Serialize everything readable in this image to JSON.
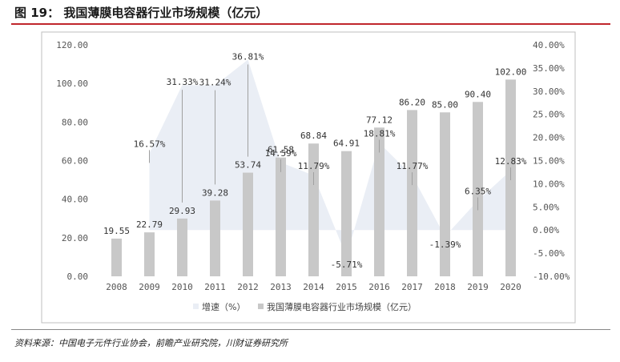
{
  "figure": {
    "title": "图 19：  我国薄膜电容器行业市场规模（亿元）",
    "source": "资料来源：中国电子元件行业协会，前瞻产业研究院，川财证券研究所"
  },
  "colors": {
    "bar": "#c8c8c8",
    "area": "#eaeef5",
    "leader": "#a0a0a0",
    "title_rule": "#c0262c",
    "chart_border": "#bfbfbf"
  },
  "chart_data": {
    "type": "bar",
    "categories": [
      "2008",
      "2009",
      "2010",
      "2011",
      "2012",
      "2013",
      "2014",
      "2015",
      "2016",
      "2017",
      "2018",
      "2019",
      "2020"
    ],
    "series": [
      {
        "name": "我国薄膜电容器行业市场规模（亿元）",
        "type": "bar",
        "axis": "left",
        "values": [
          19.55,
          22.79,
          29.93,
          39.28,
          53.74,
          61.58,
          68.84,
          64.91,
          77.12,
          86.2,
          85.0,
          90.4,
          102.0
        ],
        "labels": [
          "19.55",
          "22.79",
          "29.93",
          "39.28",
          "53.74",
          "61.58",
          "68.84",
          "64.91",
          "77.12",
          "86.20",
          "85.00",
          "90.40",
          "102.00"
        ]
      },
      {
        "name": "增速（%）",
        "type": "area",
        "axis": "right",
        "values": [
          null,
          16.57,
          31.33,
          31.24,
          36.81,
          14.59,
          11.79,
          -5.71,
          18.81,
          11.77,
          -1.39,
          6.35,
          12.83
        ],
        "labels": [
          "",
          "16.57%",
          "31.33%",
          "31.24%",
          "36.81%",
          "14.59%",
          "11.79%",
          "-5.71%",
          "18.81%",
          "11.77%",
          "-1.39%",
          "6.35%",
          "12.83%"
        ]
      }
    ],
    "y_left": {
      "min": 0,
      "max": 120,
      "step": 20,
      "ticks": [
        "0.00",
        "20.00",
        "40.00",
        "60.00",
        "80.00",
        "100.00",
        "120.00"
      ]
    },
    "y_right": {
      "min": -10,
      "max": 40,
      "step": 5,
      "ticks": [
        "-10.00%",
        "-5.00%",
        "0.00%",
        "5.00%",
        "10.00%",
        "15.00%",
        "20.00%",
        "25.00%",
        "30.00%",
        "35.00%",
        "40.00%"
      ]
    },
    "legend": {
      "position": "bottom",
      "items": [
        "增速（%）",
        "我国薄膜电容器行业市场规模（亿元）"
      ]
    },
    "grid": false
  }
}
